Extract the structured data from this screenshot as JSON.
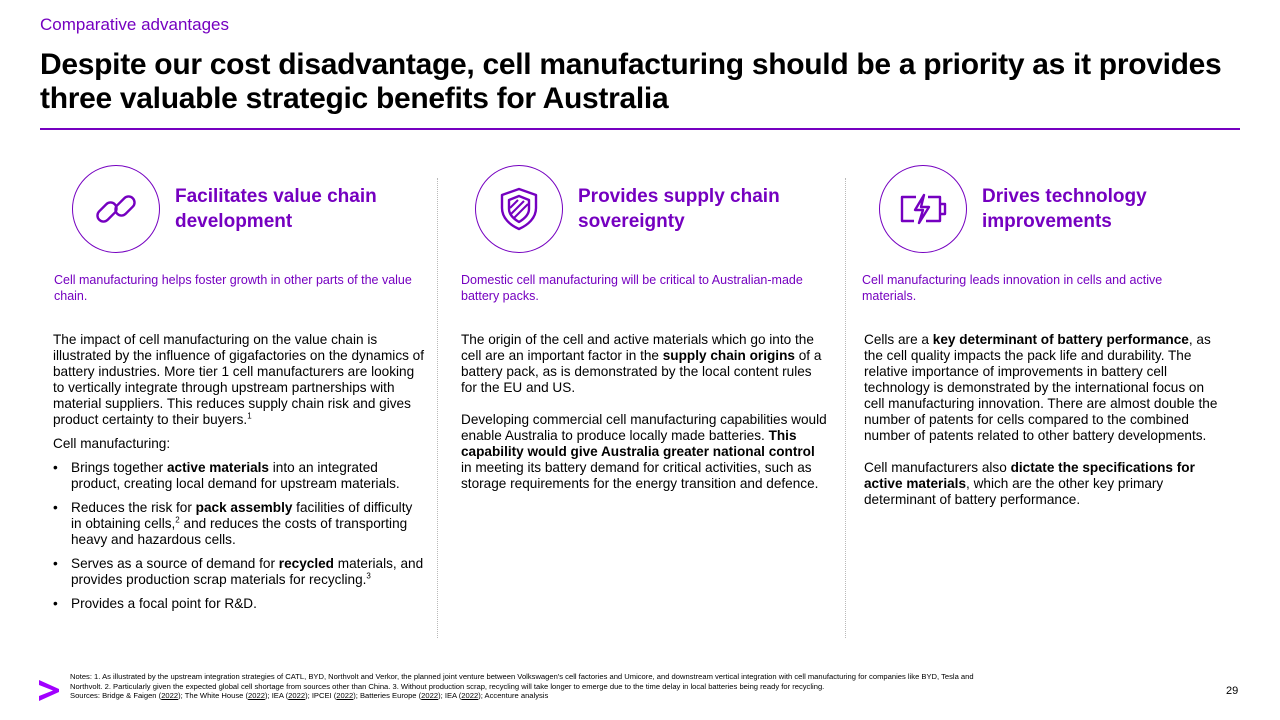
{
  "header": {
    "section": "Comparative advantages",
    "title": "Despite our cost disadvantage, cell manufacturing should be a priority as it provides three valuable strategic benefits for Australia"
  },
  "accent_color": "#7500c0",
  "columns": [
    {
      "icon": "chain-link-icon",
      "heading": "Facilitates value chain development",
      "subheading": "Cell manufacturing helps foster growth in other parts of the value chain.",
      "p1": "The impact of cell manufacturing on the value chain is illustrated by the influence of gigafactories on the dynamics of battery industries. More tier 1 cell manufacturers are looking to vertically integrate through upstream partnerships with material suppliers. This reduces supply chain risk and gives product certainty to their buyers.",
      "p1_sup": "1",
      "p2": "Cell manufacturing:",
      "bullets": [
        {
          "a": "Brings together ",
          "b": "active materials",
          "c": " into an integrated product, creating local demand for upstream materials."
        },
        {
          "a": "Reduces the risk for ",
          "b": "pack assembly",
          "c": " facilities of difficulty in obtaining cells,",
          "sup": "2",
          "d": " and reduces the costs of transporting heavy and hazardous cells."
        },
        {
          "a": "Serves as a source of demand for ",
          "b": "recycled",
          "c": " materials, and provides production scrap materials for recycling.",
          "sup": "3"
        },
        {
          "a": "Provides a focal point for R&D."
        }
      ]
    },
    {
      "icon": "shield-icon",
      "heading": "Provides supply chain sovereignty",
      "subheading": "Domestic cell manufacturing will be critical to Australian-made battery packs.",
      "p1a": "The origin of the cell and active materials which go into the cell are an important factor in the ",
      "p1b": "supply chain origins",
      "p1c": " of a battery pack, as is demonstrated by the local content rules for the EU and US.",
      "p2a": "Developing commercial cell manufacturing capabilities would enable Australia to produce locally made batteries. ",
      "p2b": "This capability would give Australia greater national control",
      "p2c": " in meeting its battery demand for critical activities, such as storage requirements for the energy transition and defence."
    },
    {
      "icon": "battery-charging-icon",
      "heading": "Drives technology improvements",
      "subheading": "Cell manufacturing leads innovation in cells and active materials.",
      "p1a": "Cells are a ",
      "p1b": "key determinant of battery performance",
      "p1c": ", as the cell quality impacts the pack life and durability. The relative importance of improvements in battery cell technology is demonstrated by the international focus on cell manufacturing innovation. There are almost double the number of patents for cells compared to the combined number of patents related to other battery developments.",
      "p2a": "Cell manufacturers also ",
      "p2b": "dictate the specifications for active materials",
      "p2c": ", which are the other key primary determinant of battery performance."
    }
  ],
  "footer": {
    "notes": "Notes: 1. As illustrated by the upstream integration strategies of CATL, BYD, Northvolt and Verkor, the planned joint venture between Volkswagen's cell factories and Umicore, and downstream vertical integration with cell manufacturing for companies like BYD, Tesla and Northvolt. 2. Particularly given the expected global cell shortage from sources other than China. 3. Without production scrap, recycling will take longer to emerge due to the time delay in local batteries being ready for recycling.",
    "sources_prefix": "Sources: ",
    "sources": [
      {
        "name": "Bridge & Faigen",
        "year": "2022"
      },
      {
        "name": "The White House",
        "year": "2022"
      },
      {
        "name": "IEA",
        "year": "2022"
      },
      {
        "name": "IPCEI",
        "year": "2022"
      },
      {
        "name": "Batteries Europe",
        "year": "2022"
      },
      {
        "name": "IEA",
        "year": "2022"
      }
    ],
    "sources_suffix": "Accenture analysis",
    "page_number": "29",
    "logo": "accenture-arrow-logo"
  }
}
